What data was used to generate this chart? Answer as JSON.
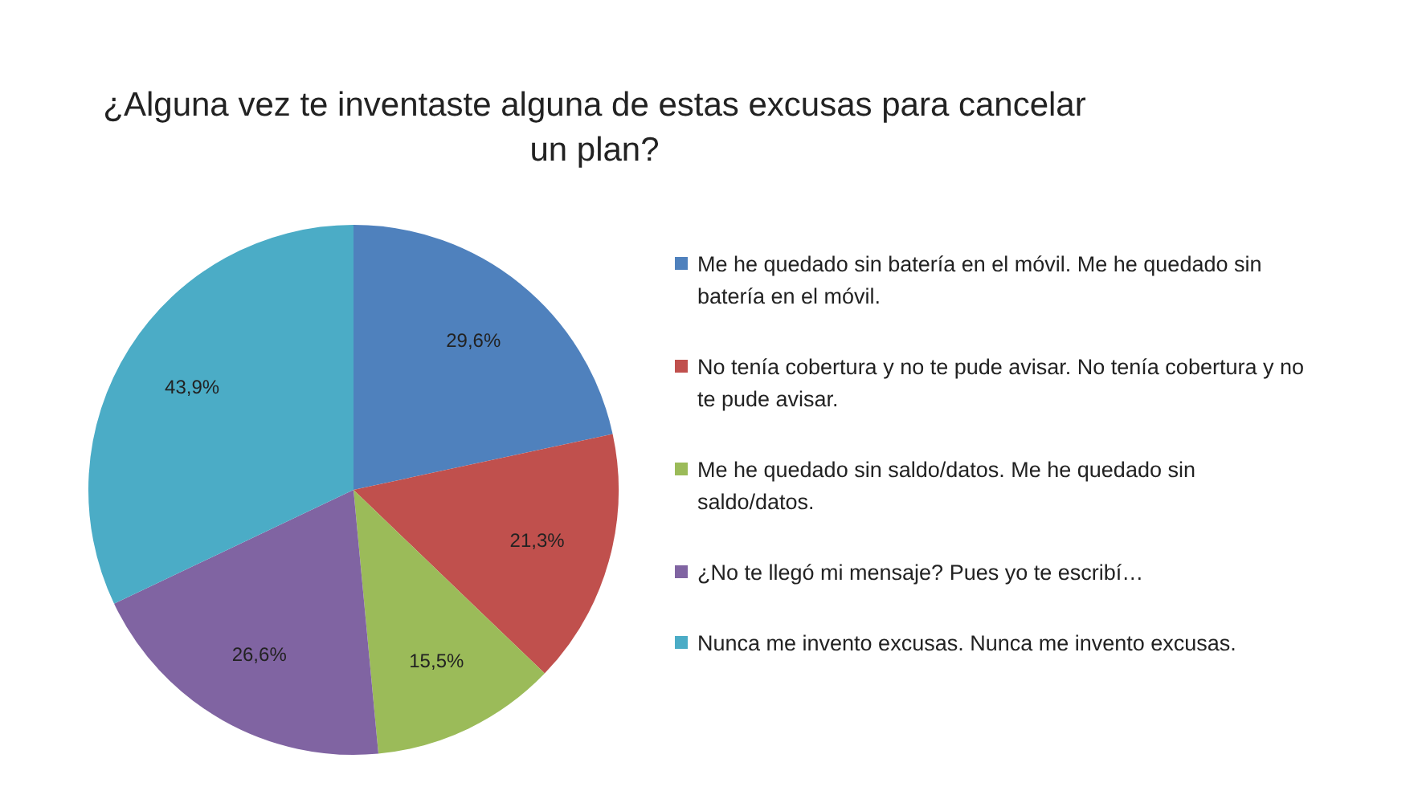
{
  "chart_data": {
    "type": "pie",
    "title": "¿Alguna vez te inventaste alguna de estas excusas para cancelar un plan?",
    "categories": [
      "Me he quedado sin batería en el móvil. Me he quedado sin batería en el móvil.",
      "No tenía cobertura y no te pude avisar. No tenía cobertura y no te pude avisar.",
      "Me he quedado sin saldo/datos. Me he quedado sin saldo/datos.",
      "¿No te llegó mi mensaje? Pues yo te escribí…",
      "Nunca me invento excusas. Nunca me invento excusas."
    ],
    "values": [
      29.6,
      21.3,
      15.5,
      26.6,
      43.9
    ],
    "value_labels": [
      "29,6%",
      "21,3%",
      "15,5%",
      "26,6%",
      "43,9%"
    ],
    "colors": [
      "#4f81bd",
      "#c0504d",
      "#9bbb59",
      "#8064a2",
      "#4bacc6"
    ],
    "legend": "right"
  }
}
